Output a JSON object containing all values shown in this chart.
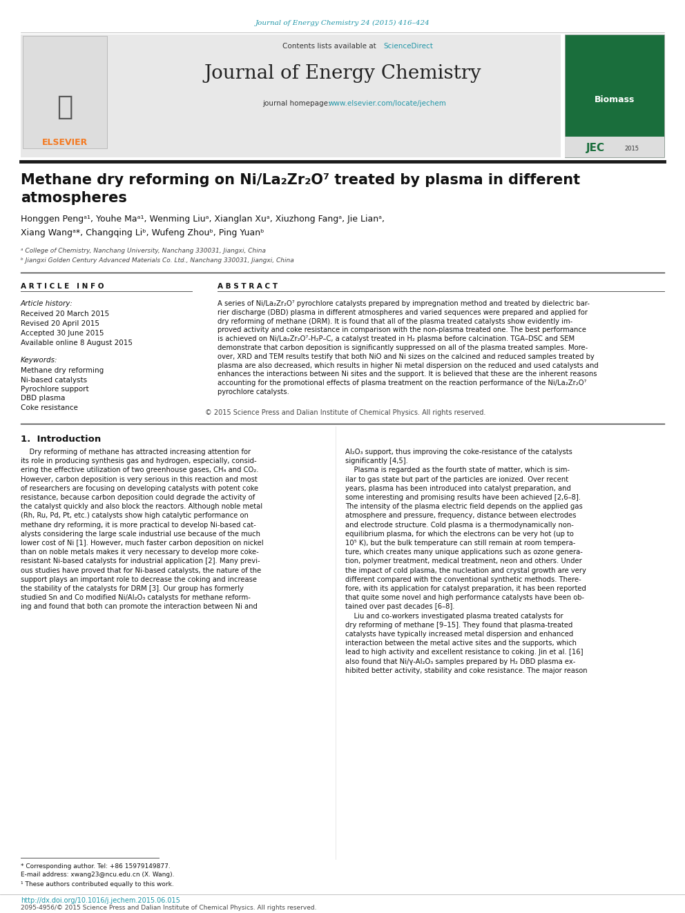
{
  "page_bg": "#ffffff",
  "top_journal_ref": "Journal of Energy Chemistry 24 (2015) 416–424",
  "top_journal_ref_color": "#2196A8",
  "header_bg": "#e8e8e8",
  "journal_name": "Journal of Energy Chemistry",
  "contents_text": "Contents lists available at ",
  "science_direct": "ScienceDirect",
  "homepage_text": "journal homepage: ",
  "homepage_url": "www.elsevier.com/locate/jechem",
  "url_color": "#2196A8",
  "elsevier_color": "#F47920",
  "article_title_line1": "Methane dry reforming on Ni/La₂Zr₂O⁷ treated by plasma in different",
  "article_title_line2": "atmospheres",
  "authors": "Honggen Pengᵃ¹, Youhe Maᵃ¹, Wenming Liuᵃ, Xianglan Xuᵃ, Xiuzhong Fangᵃ, Jie Lianᵃ,",
  "authors2": "Xiang Wangᵃ*, Changqing Liᵇ, Wufeng Zhouᵇ, Ping Yuanᵇ",
  "affil_a": "ᵃ College of Chemistry, Nanchang University, Nanchang 330031, Jiangxi, China",
  "affil_b": "ᵇ Jiangxi Golden Century Advanced Materials Co. Ltd., Nanchang 330031, Jiangxi, China",
  "article_info_header": "A R T I C L E   I N F O",
  "abstract_header": "A B S T R A C T",
  "article_history_label": "Article history:",
  "received": "Received 20 March 2015",
  "revised": "Revised 20 April 2015",
  "accepted": "Accepted 30 June 2015",
  "available": "Available online 8 August 2015",
  "keywords_label": "Keywords:",
  "keywords": [
    "Methane dry reforming",
    "Ni-based catalysts",
    "Pyrochlore support",
    "DBD plasma",
    "Coke resistance"
  ],
  "copyright_text": "© 2015 Science Press and Dalian Institute of Chemical Physics. All rights reserved.",
  "intro_header": "1.  Introduction",
  "footnote_tel": "* Corresponding author. Tel: +86 15979149877.",
  "footnote_email": "E-mail address: xwang23@ncu.edu.cn (X. Wang).",
  "footnote_1": "¹ These authors contributed equally to this work.",
  "doi_text": "http://dx.doi.org/10.1016/j.jechem.2015.06.015",
  "doi_color": "#2196A8",
  "issn_text": "2095-4956/© 2015 Science Press and Dalian Institute of Chemical Physics. All rights reserved.",
  "separator_color": "#1a1a1a",
  "thick_separator_color": "#1a1a1a",
  "abstract_lines": [
    "A series of Ni/La₂Zr₂O⁷ pyrochlore catalysts prepared by impregnation method and treated by dielectric bar-",
    "rier discharge (DBD) plasma in different atmospheres and varied sequences were prepared and applied for",
    "dry reforming of methane (DRM). It is found that all of the plasma treated catalysts show evidently im-",
    "proved activity and coke resistance in comparison with the non-plasma treated one. The best performance",
    "is achieved on Ni/La₂Zr₂O⁷-H₂P–C, a catalyst treated in H₂ plasma before calcination. TGA–DSC and SEM",
    "demonstrate that carbon deposition is significantly suppressed on all of the plasma treated samples. More-",
    "over, XRD and TEM results testify that both NiO and Ni sizes on the calcined and reduced samples treated by",
    "plasma are also decreased, which results in higher Ni metal dispersion on the reduced and used catalysts and",
    "enhances the interactions between Ni sites and the support. It is believed that these are the inherent reasons",
    "accounting for the promotional effects of plasma treatment on the reaction performance of the Ni/La₂Zr₂O⁷",
    "pyrochlore catalysts."
  ],
  "intro_left": [
    "    Dry reforming of methane has attracted increasing attention for",
    "its role in producing synthesis gas and hydrogen, especially, consid-",
    "ering the effective utilization of two greenhouse gases, CH₄ and CO₂.",
    "However, carbon deposition is very serious in this reaction and most",
    "of researchers are focusing on developing catalysts with potent coke",
    "resistance, because carbon deposition could degrade the activity of",
    "the catalyst quickly and also block the reactors. Although noble metal",
    "(Rh, Ru, Pd, Pt, etc.) catalysts show high catalytic performance on",
    "methane dry reforming, it is more practical to develop Ni-based cat-",
    "alysts considering the large scale industrial use because of the much",
    "lower cost of Ni [1]. However, much faster carbon deposition on nickel",
    "than on noble metals makes it very necessary to develop more coke-",
    "resistant Ni-based catalysts for industrial application [2]. Many previ-",
    "ous studies have proved that for Ni-based catalysts, the nature of the",
    "support plays an important role to decrease the coking and increase",
    "the stability of the catalysts for DRM [3]. Our group has formerly",
    "studied Sn and Co modified Ni/Al₂O₃ catalysts for methane reform-",
    "ing and found that both can promote the interaction between Ni and"
  ],
  "intro_right": [
    "Al₂O₃ support, thus improving the coke-resistance of the catalysts",
    "significantly [4,5].",
    "    Plasma is regarded as the fourth state of matter, which is sim-",
    "ilar to gas state but part of the particles are ionized. Over recent",
    "years, plasma has been introduced into catalyst preparation, and",
    "some interesting and promising results have been achieved [2,6–8].",
    "The intensity of the plasma electric field depends on the applied gas",
    "atmosphere and pressure, frequency, distance between electrodes",
    "and electrode structure. Cold plasma is a thermodynamically non-",
    "equilibrium plasma, for which the electrons can be very hot (up to",
    "10⁵ K), but the bulk temperature can still remain at room tempera-",
    "ture, which creates many unique applications such as ozone genera-",
    "tion, polymer treatment, medical treatment, neon and others. Under",
    "the impact of cold plasma, the nucleation and crystal growth are very",
    "different compared with the conventional synthetic methods. There-",
    "fore, with its application for catalyst preparation, it has been reported",
    "that quite some novel and high performance catalysts have been ob-",
    "tained over past decades [6–8].",
    "    Liu and co-workers investigated plasma treated catalysts for",
    "dry reforming of methane [9–15]. They found that plasma-treated",
    "catalysts have typically increased metal dispersion and enhanced",
    "interaction between the metal active sites and the supports, which",
    "lead to high activity and excellent resistance to coking. Jin et al. [16]",
    "also found that Ni/γ-Al₂O₃ samples prepared by H₂ DBD plasma ex-",
    "hibited better activity, stability and coke resistance. The major reason"
  ]
}
